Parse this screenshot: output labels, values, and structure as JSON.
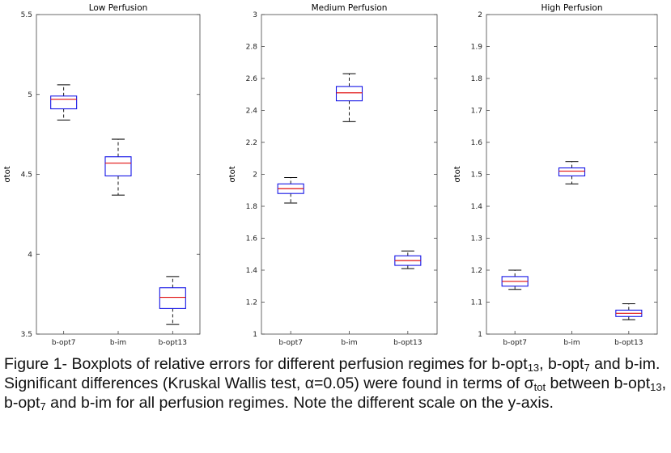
{
  "chart_data": [
    {
      "type": "boxplot",
      "title": "Low Perfusion",
      "ylabel": "σtot",
      "ylim": [
        3.5,
        5.5
      ],
      "yticks": [
        "3.5",
        "4",
        "4.5",
        "5",
        "5.5"
      ],
      "categories": [
        "b-opt7",
        "b-im",
        "b-opt13"
      ],
      "boxes": [
        {
          "whisker_low": 4.84,
          "q1": 4.91,
          "median": 4.97,
          "q3": 4.99,
          "whisker_high": 5.06
        },
        {
          "whisker_low": 4.37,
          "q1": 4.49,
          "median": 4.57,
          "q3": 4.61,
          "whisker_high": 4.72
        },
        {
          "whisker_low": 3.56,
          "q1": 3.66,
          "median": 3.73,
          "q3": 3.79,
          "whisker_high": 3.86
        }
      ]
    },
    {
      "type": "boxplot",
      "title": "Medium Perfusion",
      "ylabel": "σtot",
      "ylim": [
        1,
        3
      ],
      "yticks": [
        "1",
        "1.2",
        "1.4",
        "1.6",
        "1.8",
        "2",
        "2.2",
        "2.4",
        "2.6",
        "2.8",
        "3"
      ],
      "categories": [
        "b-opt7",
        "b-im",
        "b-opt13"
      ],
      "boxes": [
        {
          "whisker_low": 1.82,
          "q1": 1.88,
          "median": 1.91,
          "q3": 1.94,
          "whisker_high": 1.98
        },
        {
          "whisker_low": 2.33,
          "q1": 2.46,
          "median": 2.51,
          "q3": 2.55,
          "whisker_high": 2.63
        },
        {
          "whisker_low": 1.41,
          "q1": 1.43,
          "median": 1.46,
          "q3": 1.49,
          "whisker_high": 1.52
        }
      ]
    },
    {
      "type": "boxplot",
      "title": "High Perfusion",
      "ylabel": "σtot",
      "ylim": [
        1,
        2
      ],
      "yticks": [
        "1",
        "1.1",
        "1.2",
        "1.3",
        "1.4",
        "1.5",
        "1.6",
        "1.7",
        "1.8",
        "1.9",
        "2"
      ],
      "categories": [
        "b-opt7",
        "b-im",
        "b-opt13"
      ],
      "boxes": [
        {
          "whisker_low": 1.14,
          "q1": 1.15,
          "median": 1.165,
          "q3": 1.18,
          "whisker_high": 1.2
        },
        {
          "whisker_low": 1.47,
          "q1": 1.495,
          "median": 1.51,
          "q3": 1.52,
          "whisker_high": 1.54
        },
        {
          "whisker_low": 1.045,
          "q1": 1.055,
          "median": 1.065,
          "q3": 1.075,
          "whisker_high": 1.095
        }
      ]
    }
  ],
  "caption": {
    "p1": "Figure 1- Boxplots of relative errors for different perfusion regimes for b-opt",
    "s1": "13",
    "p2": ", b-opt",
    "s2": "7",
    "p3": " and b-im. Significant differences (Kruskal Wallis test, α=0.05) were found in terms of σ",
    "s3": "tot",
    "p4": " between b-opt",
    "s4": "13",
    "p5": ", b-opt",
    "s5": "7",
    "p6": " and b-im for all perfusion regimes. Note the different scale on the y-axis."
  },
  "colors": {
    "box": "#1414e6",
    "median": "#e01010",
    "whisker": "#000000",
    "axis": "#444444"
  }
}
